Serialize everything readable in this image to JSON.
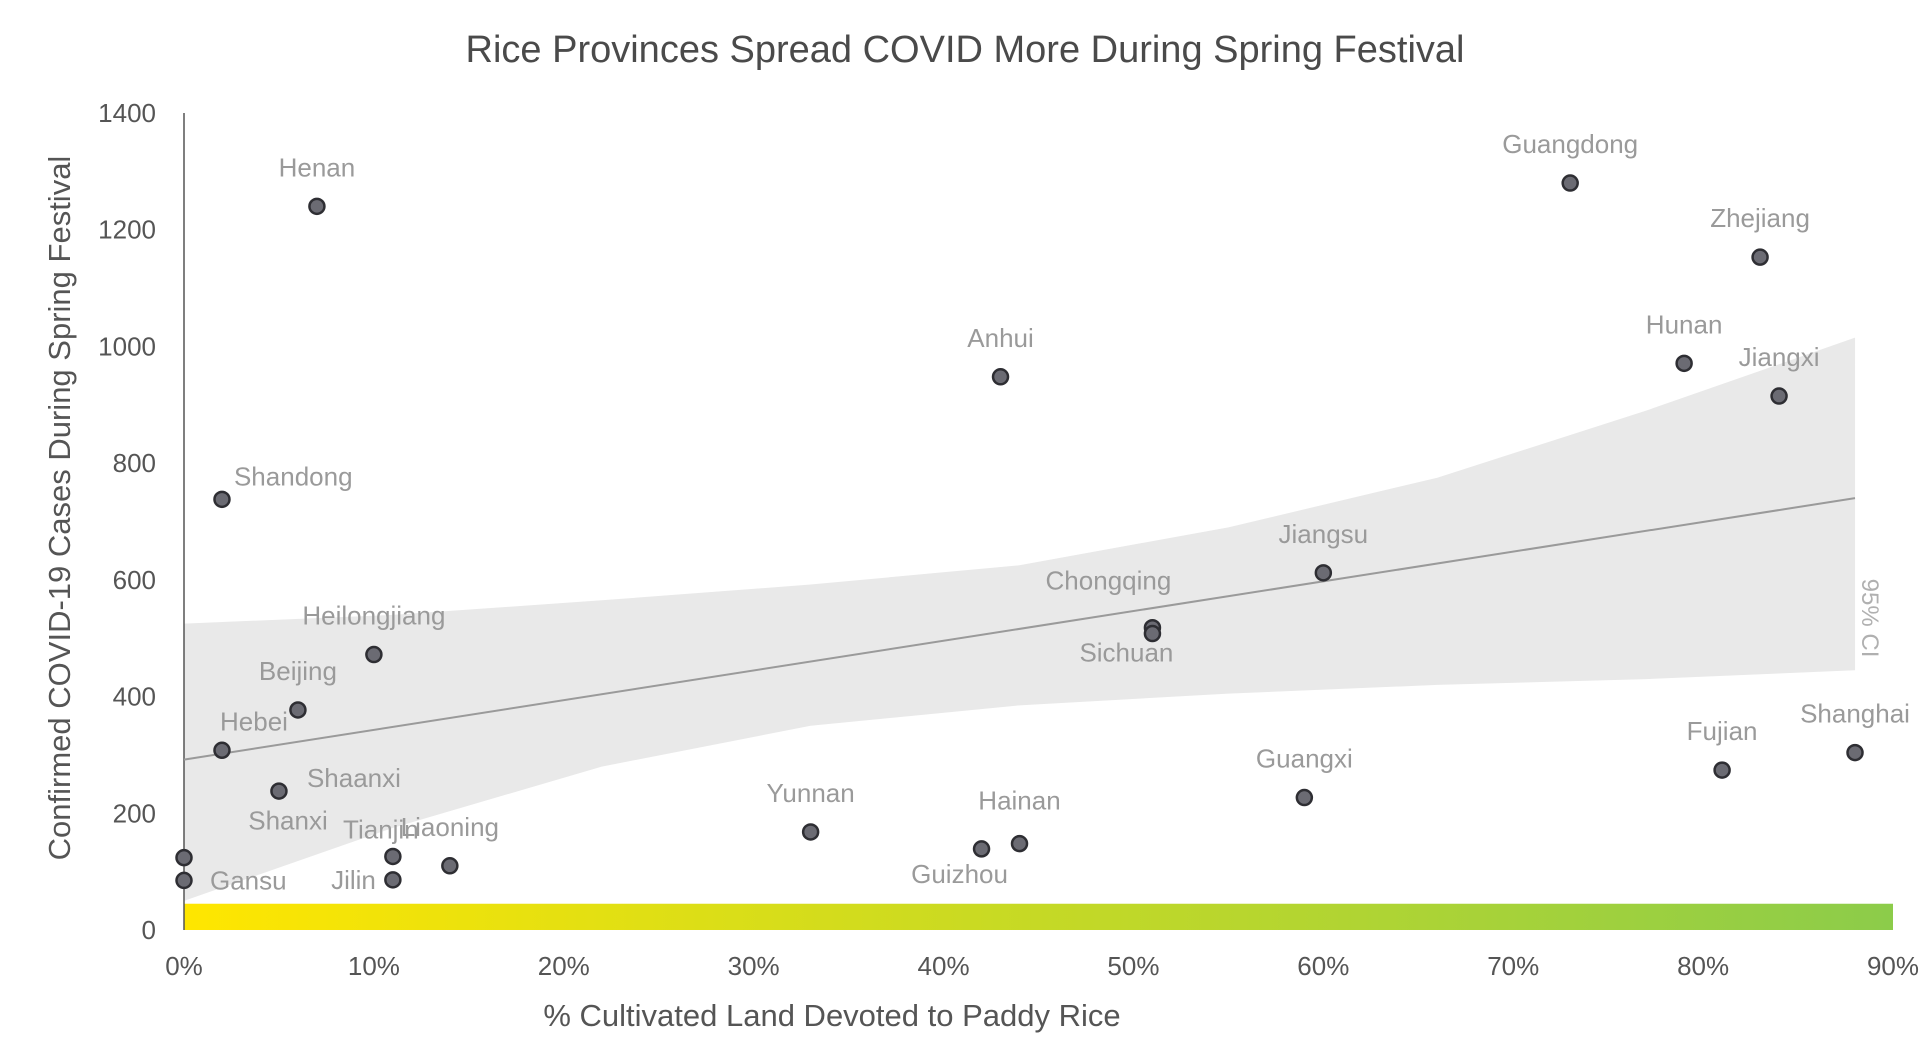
{
  "chart_data": {
    "type": "scatter",
    "title": "Rice Provinces Spread COVID More During Spring Festival",
    "xlabel": "% Cultivated Land Devoted to Paddy Rice",
    "ylabel": "Confirmed COVID-19 Cases During Spring Festival",
    "xlim": [
      0,
      0.9
    ],
    "ylim": [
      0,
      1400
    ],
    "x_ticks": [
      "0%",
      "10%",
      "20%",
      "30%",
      "40%",
      "50%",
      "60%",
      "70%",
      "80%",
      "90%"
    ],
    "y_ticks": [
      "0",
      "200",
      "400",
      "600",
      "800",
      "1000",
      "1200",
      "1400"
    ],
    "grid": false,
    "ci_label": "95% CI",
    "trend_line": {
      "x": [
        0,
        0.88
      ],
      "y": [
        292,
        740
      ]
    },
    "confidence_band": {
      "x": [
        0,
        0.11,
        0.22,
        0.33,
        0.44,
        0.55,
        0.66,
        0.77,
        0.88
      ],
      "upper": [
        525,
        540,
        565,
        592,
        625,
        690,
        775,
        890,
        1015
      ],
      "lower": [
        50,
        175,
        280,
        350,
        385,
        405,
        420,
        430,
        445
      ]
    },
    "color_bar": {
      "from": "#ffe600",
      "to": "#8ccc4a"
    },
    "points": [
      {
        "name": "Henan",
        "x": 0.07,
        "y": 1240
      },
      {
        "name": "Shandong",
        "x": 0.02,
        "y": 738
      },
      {
        "name": "Heilongjiang",
        "x": 0.1,
        "y": 472
      },
      {
        "name": "Beijing",
        "x": 0.06,
        "y": 377
      },
      {
        "name": "Hebei",
        "x": 0.02,
        "y": 308
      },
      {
        "name": "Shaanxi",
        "x": 0.05,
        "y": 238
      },
      {
        "name": "Shanxi",
        "x": 0.0,
        "y": 124
      },
      {
        "name": "Gansu",
        "x": 0.0,
        "y": 85
      },
      {
        "name": "Tianjin",
        "x": 0.11,
        "y": 126
      },
      {
        "name": "Jilin",
        "x": 0.11,
        "y": 86
      },
      {
        "name": "Liaoning",
        "x": 0.14,
        "y": 110
      },
      {
        "name": "Yunnan",
        "x": 0.33,
        "y": 168
      },
      {
        "name": "Guizhou",
        "x": 0.42,
        "y": 139
      },
      {
        "name": "Hainan",
        "x": 0.44,
        "y": 148
      },
      {
        "name": "Anhui",
        "x": 0.43,
        "y": 948
      },
      {
        "name": "Chongqing",
        "x": 0.51,
        "y": 518
      },
      {
        "name": "Sichuan",
        "x": 0.51,
        "y": 508
      },
      {
        "name": "Jiangsu",
        "x": 0.6,
        "y": 612
      },
      {
        "name": "Guangxi",
        "x": 0.59,
        "y": 227
      },
      {
        "name": "Guangdong",
        "x": 0.73,
        "y": 1280
      },
      {
        "name": "Zhejiang",
        "x": 0.83,
        "y": 1153
      },
      {
        "name": "Hunan",
        "x": 0.79,
        "y": 971
      },
      {
        "name": "Jiangxi",
        "x": 0.84,
        "y": 915
      },
      {
        "name": "Fujian",
        "x": 0.81,
        "y": 274
      },
      {
        "name": "Shanghai",
        "x": 0.88,
        "y": 304
      }
    ]
  }
}
